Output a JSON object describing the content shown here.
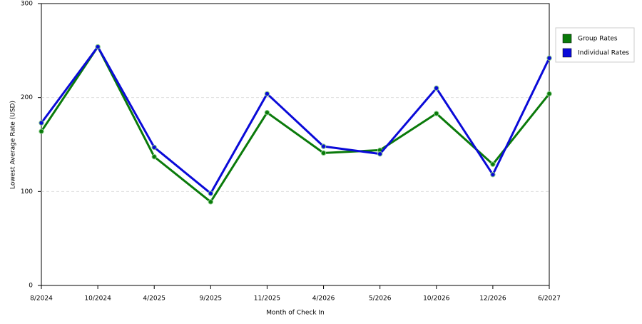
{
  "chart_data": {
    "type": "line",
    "x_label": "Month of Check In",
    "y_label": "Lowest Average Rate (USD)",
    "categories": [
      "8/2024",
      "10/2024",
      "4/2025",
      "9/2025",
      "11/2025",
      "4/2026",
      "5/2026",
      "10/2026",
      "12/2026",
      "6/2027"
    ],
    "series": [
      {
        "name": "Group Rates",
        "color": "#0a7a0a",
        "values": [
          164,
          254,
          137,
          89,
          184,
          141,
          144,
          183,
          129,
          204
        ]
      },
      {
        "name": "Individual Rates",
        "color": "#0a0ad8",
        "values": [
          173,
          254,
          147,
          98,
          204,
          148,
          140,
          210,
          118,
          242
        ]
      }
    ],
    "ylim": [
      0,
      300
    ],
    "yticks": [
      0,
      100,
      200,
      300
    ],
    "grid": true,
    "legend": "right"
  }
}
